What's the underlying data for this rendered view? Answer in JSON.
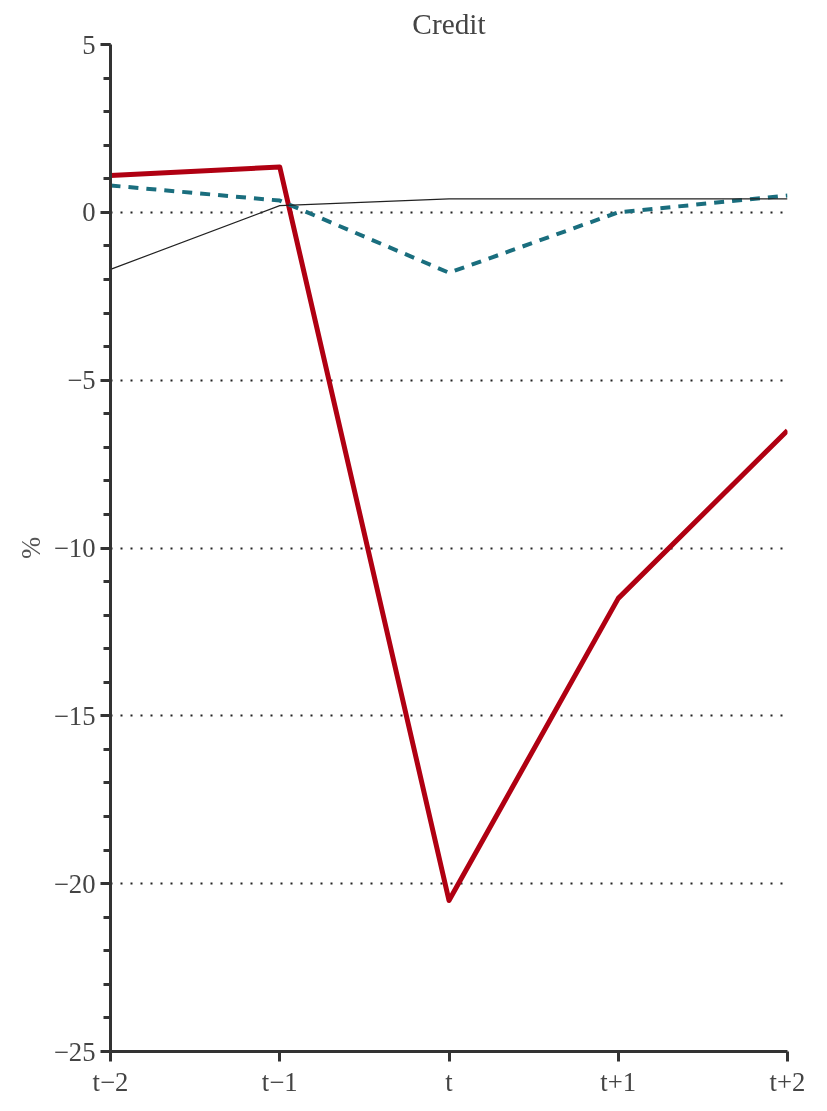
{
  "chart_data": {
    "type": "line",
    "title": "Credit",
    "ylabel": "%",
    "categories": [
      "t−2",
      "t−1",
      "t",
      "t+1",
      "t+2"
    ],
    "series": [
      {
        "color": "#b00012",
        "values": [
          1.1,
          1.35,
          -20.5,
          -11.5,
          -6.5
        ],
        "line_style": "solid"
      },
      {
        "color": "#1a6e7e",
        "values": [
          0.8,
          0.35,
          -1.8,
          0.0,
          0.5
        ],
        "line_style": "dashed"
      },
      {
        "color": "#222222",
        "values": [
          -1.7,
          0.2,
          0.4,
          0.4,
          0.4
        ],
        "line_style": "solid"
      }
    ],
    "ylim": [
      -25,
      5
    ],
    "yticks": [
      {
        "value": -25,
        "label": "−25"
      },
      {
        "value": -20,
        "label": "−20"
      },
      {
        "value": -15,
        "label": "−15"
      },
      {
        "value": -10,
        "label": "−10"
      },
      {
        "value": -5,
        "label": "−5"
      },
      0,
      5
    ],
    "grid": "y",
    "marker": "none"
  }
}
